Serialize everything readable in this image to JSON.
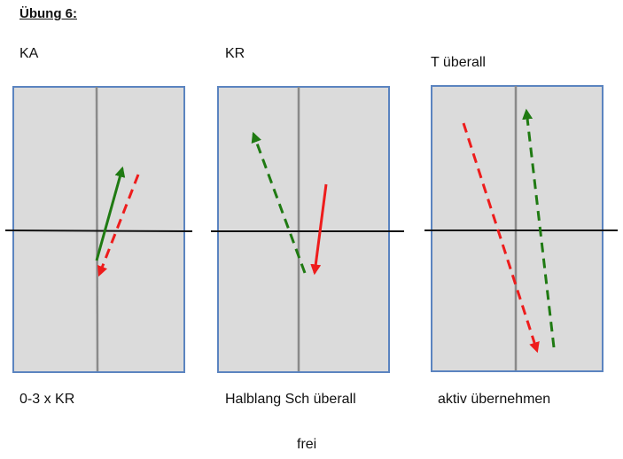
{
  "title": "Übung 6:",
  "panels": [
    {
      "heading": "KA",
      "caption": "0-3 x KR"
    },
    {
      "heading": "KR",
      "caption": "Halblang Sch überall"
    },
    {
      "heading": "T überall",
      "caption": "aktiv übernehmen"
    }
  ],
  "footer": "frei",
  "colors": {
    "court_fill": "#dbdbdb",
    "court_border": "#5b84c0",
    "center_line": "#8a8a8a",
    "net_line": "#111111",
    "green_arrow": "#1f7a12",
    "red_arrow": "#ee1c1c"
  },
  "arrows": [
    {
      "panel": 1,
      "color": "green",
      "style": "solid"
    },
    {
      "panel": 1,
      "color": "red",
      "style": "dashed"
    },
    {
      "panel": 2,
      "color": "green",
      "style": "dashed"
    },
    {
      "panel": 2,
      "color": "red",
      "style": "solid"
    },
    {
      "panel": 3,
      "color": "red",
      "style": "dashed"
    },
    {
      "panel": 3,
      "color": "green",
      "style": "dashed"
    }
  ]
}
